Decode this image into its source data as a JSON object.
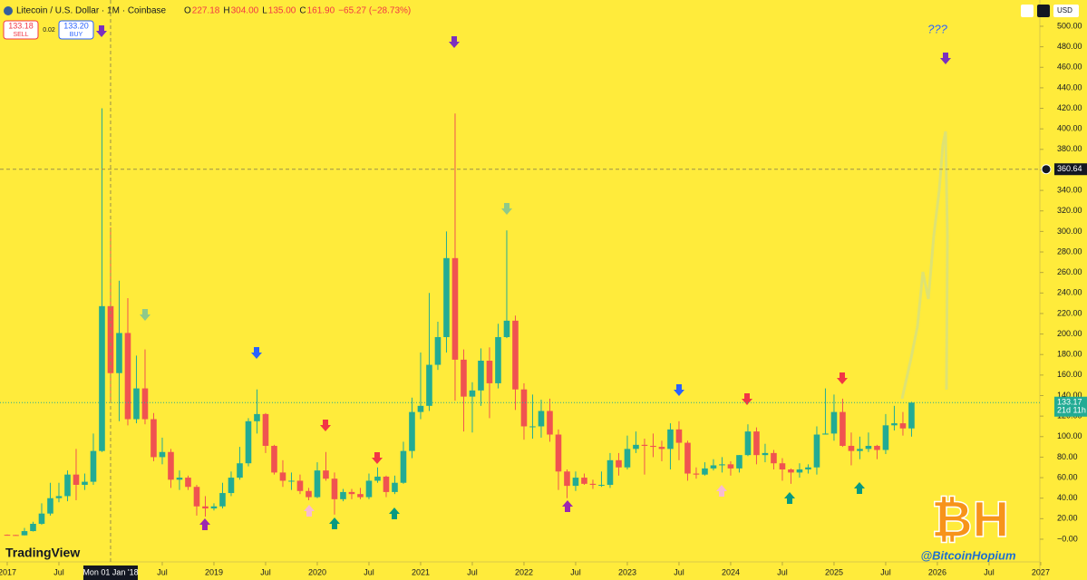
{
  "header": {
    "symbol": "Litecoin / U.S. Dollar · 1M · Coinbase",
    "legend_keys": [
      "O",
      "H",
      "L",
      "C"
    ],
    "legend_values": [
      "227.18",
      "304.00",
      "135.00",
      "161.90",
      "−65.27 (−28.73%)"
    ],
    "sell_price": "133.18",
    "sell": "SELL",
    "spread": "0.02",
    "buy_price": "133.20",
    "buy": "BUY",
    "currency": "USD"
  },
  "chart_data": {
    "type": "candlestick",
    "series": [
      {
        "up_color": "#22ab94",
        "down_color": "#f05350",
        "ohlc": [
          [
            4.3,
            4.6,
            3.7,
            4.1
          ],
          [
            4.1,
            4.2,
            3.6,
            3.8
          ],
          [
            3.8,
            11,
            3.7,
            7.9
          ],
          [
            7.9,
            17,
            7.5,
            15
          ],
          [
            15,
            35,
            14,
            25
          ],
          [
            25,
            55,
            23,
            40
          ],
          [
            40,
            55,
            36,
            42
          ],
          [
            42,
            67,
            37,
            63
          ],
          [
            63,
            88,
            38,
            53
          ],
          [
            53,
            64,
            48,
            56
          ],
          [
            56,
            103,
            53,
            86
          ],
          [
            86,
            420,
            85,
            227.18
          ],
          [
            227.18,
            304,
            135,
            161.9
          ],
          [
            161.9,
            252,
            115,
            201
          ],
          [
            201,
            235,
            111,
            117
          ],
          [
            117,
            179,
            113,
            147
          ],
          [
            147,
            185,
            112,
            117
          ],
          [
            117,
            123,
            76,
            80
          ],
          [
            80,
            99,
            73,
            85
          ],
          [
            85,
            88,
            50,
            58
          ],
          [
            58,
            67,
            48,
            60
          ],
          [
            60,
            62,
            48,
            51
          ],
          [
            51,
            53,
            23,
            32
          ],
          [
            32,
            42,
            22,
            30
          ],
          [
            30,
            35,
            28,
            32
          ],
          [
            32,
            55,
            30,
            45
          ],
          [
            45,
            66,
            42,
            60
          ],
          [
            60,
            90,
            58,
            74
          ],
          [
            74,
            118,
            71,
            115
          ],
          [
            115,
            146,
            103,
            122
          ],
          [
            122,
            123,
            84,
            91
          ],
          [
            91,
            92,
            63,
            65
          ],
          [
            65,
            77,
            51,
            57
          ],
          [
            57,
            65,
            48,
            57
          ],
          [
            57,
            63,
            44,
            47
          ],
          [
            47,
            50,
            38,
            41
          ],
          [
            41,
            75,
            40,
            67
          ],
          [
            67,
            85,
            57,
            59
          ],
          [
            59,
            65,
            24,
            39
          ],
          [
            39,
            49,
            37,
            46
          ],
          [
            46,
            49,
            39,
            44
          ],
          [
            44,
            50,
            39,
            41
          ],
          [
            41,
            64,
            39,
            57
          ],
          [
            57,
            70,
            55,
            61
          ],
          [
            61,
            62,
            41,
            46
          ],
          [
            46,
            62,
            44,
            55
          ],
          [
            55,
            95,
            54,
            86
          ],
          [
            86,
            138,
            79,
            124
          ],
          [
            124,
            182,
            117,
            130
          ],
          [
            130,
            240,
            125,
            170
          ],
          [
            170,
            212,
            165,
            197
          ],
          [
            197,
            300,
            182,
            274
          ],
          [
            274,
            415,
            135,
            175
          ],
          [
            175,
            185,
            105,
            139
          ],
          [
            139,
            153,
            104,
            145
          ],
          [
            145,
            186,
            130,
            174
          ],
          [
            174,
            187,
            118,
            152
          ],
          [
            152,
            210,
            147,
            197
          ],
          [
            197,
            301,
            196,
            213
          ],
          [
            213,
            218,
            126,
            146
          ],
          [
            146,
            152,
            97,
            110
          ],
          [
            110,
            141,
            98,
            110
          ],
          [
            110,
            136,
            99,
            125
          ],
          [
            125,
            137,
            95,
            102
          ],
          [
            102,
            107,
            48,
            66
          ],
          [
            66,
            68,
            40,
            52
          ],
          [
            52,
            66,
            47,
            60
          ],
          [
            60,
            64,
            53,
            54
          ],
          [
            54,
            58,
            49,
            53
          ],
          [
            53,
            66,
            51,
            53
          ],
          [
            53,
            84,
            50,
            77
          ],
          [
            77,
            84,
            62,
            70
          ],
          [
            70,
            101,
            68,
            88
          ],
          [
            88,
            105,
            84,
            92
          ],
          [
            92,
            98,
            63,
            91
          ],
          [
            91,
            103,
            80,
            90
          ],
          [
            90,
            96,
            76,
            88
          ],
          [
            88,
            113,
            68,
            107
          ],
          [
            107,
            115,
            77,
            94
          ],
          [
            94,
            96,
            57,
            64
          ],
          [
            64,
            70,
            59,
            63
          ],
          [
            63,
            75,
            62,
            69
          ],
          [
            69,
            78,
            67,
            72
          ],
          [
            72,
            80,
            65,
            73
          ],
          [
            73,
            76,
            62,
            69
          ],
          [
            69,
            82,
            65,
            82
          ],
          [
            82,
            112,
            81,
            105
          ],
          [
            105,
            109,
            73,
            82
          ],
          [
            82,
            93,
            75,
            84
          ],
          [
            84,
            87,
            68,
            74
          ],
          [
            74,
            79,
            57,
            68
          ],
          [
            68,
            69,
            54,
            65
          ],
          [
            65,
            74,
            60,
            68
          ],
          [
            68,
            73,
            64,
            70
          ],
          [
            70,
            110,
            63,
            102
          ],
          [
            102,
            147,
            102,
            103
          ],
          [
            103,
            141,
            96,
            124
          ],
          [
            124,
            137,
            90,
            91
          ],
          [
            91,
            104,
            72,
            86
          ],
          [
            86,
            100,
            78,
            88
          ],
          [
            88,
            104,
            85,
            91
          ],
          [
            91,
            92,
            78,
            87
          ],
          [
            87,
            122,
            83,
            111
          ],
          [
            111,
            130,
            106,
            113
          ],
          [
            113,
            124,
            101,
            108
          ],
          [
            108,
            134,
            100,
            133.17
          ]
        ]
      }
    ],
    "xlim": [
      -0.84,
      119.9
    ],
    "ylim": [
      -22.1,
      525.6
    ],
    "xticks": [
      {
        "value": 0,
        "label": "2017"
      },
      {
        "value": 6,
        "label": "Jul"
      },
      {
        "value": 18,
        "label": "Jul"
      },
      {
        "value": 24,
        "label": "2019"
      },
      {
        "value": 30,
        "label": "Jul"
      },
      {
        "value": 36,
        "label": "2020"
      },
      {
        "value": 42,
        "label": "Jul"
      },
      {
        "value": 48,
        "label": "2021"
      },
      {
        "value": 54,
        "label": "Jul"
      },
      {
        "value": 60,
        "label": "2022"
      },
      {
        "value": 66,
        "label": "Jul"
      },
      {
        "value": 72,
        "label": "2023"
      },
      {
        "value": 78,
        "label": "Jul"
      },
      {
        "value": 84,
        "label": "2024"
      },
      {
        "value": 90,
        "label": "Jul"
      },
      {
        "value": 96,
        "label": "2025"
      },
      {
        "value": 102,
        "label": "Jul"
      },
      {
        "value": 108,
        "label": "2026"
      },
      {
        "value": 114,
        "label": "Jul"
      },
      {
        "value": 120,
        "label": "2027"
      }
    ],
    "crosshair": {
      "x": 12,
      "label": "Mon 01 Jan '18"
    },
    "yticks": [
      {
        "value": 0,
        "label": "−0.00"
      },
      {
        "value": 20,
        "label": "20.00"
      },
      {
        "value": 40,
        "label": "40.00"
      },
      {
        "value": 60,
        "label": "60.00"
      },
      {
        "value": 80,
        "label": "80.00"
      },
      {
        "value": 100,
        "label": "100.00"
      },
      {
        "value": 120,
        "label": "120.00"
      },
      {
        "value": 140,
        "label": "140.00"
      },
      {
        "value": 160,
        "label": "160.00"
      },
      {
        "value": 180,
        "label": "180.00"
      },
      {
        "value": 200,
        "label": "200.00"
      },
      {
        "value": 220,
        "label": "220.00"
      },
      {
        "value": 240,
        "label": "240.00"
      },
      {
        "value": 260,
        "label": "260.00"
      },
      {
        "value": 280,
        "label": "280.00"
      },
      {
        "value": 300,
        "label": "300.00"
      },
      {
        "value": 320,
        "label": "320.00"
      },
      {
        "value": 340,
        "label": "340.00"
      },
      {
        "value": 360,
        "label": "360.00"
      },
      {
        "value": 380,
        "label": "380.00"
      },
      {
        "value": 400,
        "label": "400.00"
      },
      {
        "value": 420,
        "label": "420.00"
      },
      {
        "value": 440,
        "label": "440.00"
      },
      {
        "value": 460,
        "label": "460.00"
      },
      {
        "value": 480,
        "label": "480.00"
      },
      {
        "value": 500,
        "label": "500.00"
      }
    ],
    "price_lines": [
      {
        "value": 360.64,
        "label": "360.64",
        "color": "#131722"
      },
      {
        "value": 133.17,
        "label": "133.17",
        "sub": "21d 11h",
        "color": "#22ab94"
      }
    ],
    "annotation": "???",
    "brand": "TradingView",
    "watermark": "@BitcoinHopium",
    "logo": "₿H"
  }
}
